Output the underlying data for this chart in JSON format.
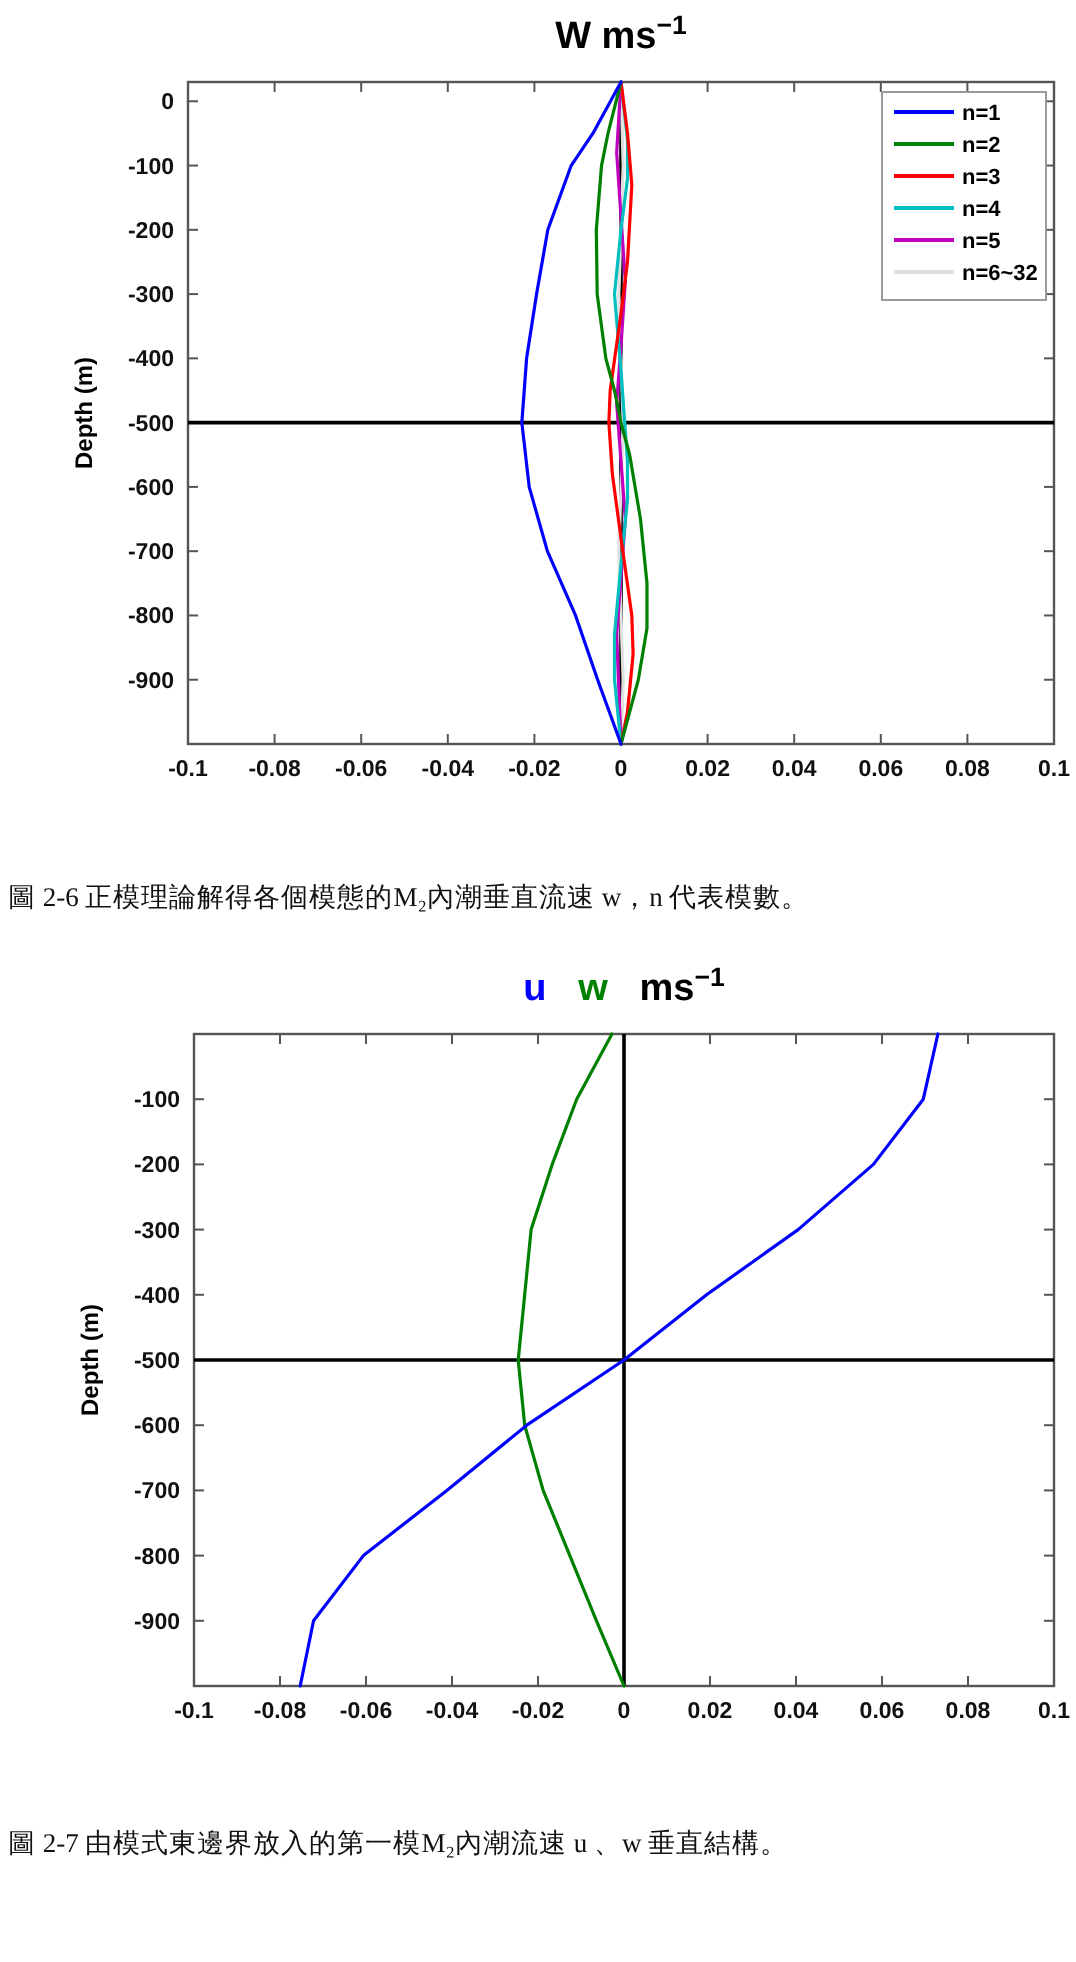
{
  "chart_data": [
    {
      "type": "line",
      "title": "W ms$^{−1}$",
      "ylabel": "Depth (m)",
      "xlim": [
        -0.1,
        0.1
      ],
      "xticks": [
        -0.1,
        -0.08,
        -0.06,
        -0.04,
        -0.02,
        0,
        0.02,
        0.04,
        0.06,
        0.08,
        0.1
      ],
      "ylim": [
        -1000,
        30
      ],
      "yticks": [
        -900,
        -800,
        -700,
        -600,
        -500,
        -400,
        -300,
        -200,
        -100,
        0
      ],
      "grid": false,
      "legend": "top right",
      "line_style": "solid",
      "marker": "none",
      "series": [
        {
          "name": "n=1",
          "color": "#0000ff",
          "x": [
            0,
            -0.0065,
            -0.0115,
            -0.0169,
            -0.0195,
            -0.0218,
            -0.0229,
            -0.0212,
            -0.017,
            -0.0105,
            -0.0054,
            0
          ],
          "values": [
            30,
            -50,
            -100,
            -200,
            -300,
            -400,
            -500,
            -600,
            -700,
            -800,
            -900,
            -1000
          ]
        },
        {
          "name": "n=2",
          "color": "#008000",
          "x": [
            0,
            -0.003,
            -0.0045,
            -0.0057,
            -0.0055,
            -0.0035,
            -0.0015,
            0,
            0.002,
            0.0045,
            0.006,
            0.006,
            0.004,
            0
          ],
          "values": [
            30,
            -50,
            -100,
            -200,
            -300,
            -400,
            -450,
            -500,
            -550,
            -650,
            -750,
            -820,
            -900,
            -1000
          ]
        },
        {
          "name": "n=3",
          "color": "#ff0000",
          "x": [
            0,
            0.0015,
            0.0025,
            0.0015,
            0,
            -0.0025,
            -0.0028,
            -0.002,
            0,
            0.0025,
            0.0028,
            0.0015,
            0
          ],
          "values": [
            30,
            -50,
            -130,
            -250,
            -330,
            -450,
            -500,
            -580,
            -680,
            -800,
            -860,
            -950,
            -1000
          ]
        },
        {
          "name": "n=4",
          "color": "#00bfbf",
          "x": [
            0,
            0.0015,
            0.0015,
            0,
            -0.0015,
            0,
            0.0015,
            0.0015,
            0,
            -0.0015,
            -0.0015,
            0
          ],
          "values": [
            30,
            -60,
            -120,
            -200,
            -300,
            -420,
            -560,
            -620,
            -720,
            -830,
            -900,
            -1000
          ]
        },
        {
          "name": "n=5",
          "color": "#bf00bf",
          "x": [
            0,
            -0.001,
            0,
            0.001,
            0,
            -0.001,
            0,
            0.001,
            0,
            -0.001,
            0
          ],
          "values": [
            30,
            -80,
            -180,
            -280,
            -380,
            -470,
            -560,
            -650,
            -740,
            -830,
            -1000
          ]
        },
        {
          "name": "n=6~32",
          "color": "#e0e0e0",
          "x": [
            0,
            0.0005,
            -0.0005,
            0.0005,
            -0.0005,
            0.0005,
            0
          ],
          "values": [
            30,
            -100,
            -300,
            -500,
            -700,
            -900,
            -1000
          ]
        }
      ],
      "ref_lines": [
        {
          "axis": "x",
          "value": 0,
          "color": "#000000"
        },
        {
          "axis": "y",
          "value": -500,
          "color": "#000000"
        }
      ],
      "annotations": [
        "圖 2-6 正模理論解得各個模態的M₂內潮垂直流速 w，n 代表模數。"
      ]
    },
    {
      "type": "line",
      "title": "ms$^{−1}$",
      "ylabel": "Depth (m)",
      "xlim": [
        -0.1,
        0.1
      ],
      "xticks": [
        -0.1,
        -0.08,
        -0.06,
        -0.04,
        -0.02,
        0,
        0.02,
        0.04,
        0.06,
        0.08,
        0.1
      ],
      "ylim": [
        -1000,
        0
      ],
      "yticks": [
        -900,
        -800,
        -700,
        -600,
        -500,
        -400,
        -300,
        -200,
        -100
      ],
      "grid": false,
      "line_style": "solid",
      "marker": "none",
      "series": [
        {
          "name": "u",
          "color": "#0000ff",
          "x": [
            0.073,
            0.0696,
            0.058,
            0.0405,
            0.0192,
            0,
            -0.0226,
            -0.0412,
            -0.0606,
            -0.0722,
            -0.0753
          ],
          "values": [
            0,
            -100,
            -200,
            -300,
            -400,
            -500,
            -600,
            -700,
            -800,
            -900,
            -1000
          ]
        },
        {
          "name": "w",
          "color": "#008000",
          "x": [
            -0.0028,
            -0.011,
            -0.0167,
            -0.0216,
            -0.0231,
            -0.0246,
            -0.0231,
            -0.0188,
            -0.0126,
            -0.0064,
            0
          ],
          "values": [
            0,
            -100,
            -200,
            -300,
            -400,
            -500,
            -600,
            -700,
            -800,
            -900,
            -1000
          ]
        }
      ],
      "ref_lines": [
        {
          "axis": "x",
          "value": 0,
          "color": "#000000"
        },
        {
          "axis": "y",
          "value": -500,
          "color": "#000000"
        }
      ],
      "annotations": [
        "圖 2-7 由模式東邊界放入的第一模M₂內潮流速 u 、w 垂直結構。"
      ]
    }
  ]
}
